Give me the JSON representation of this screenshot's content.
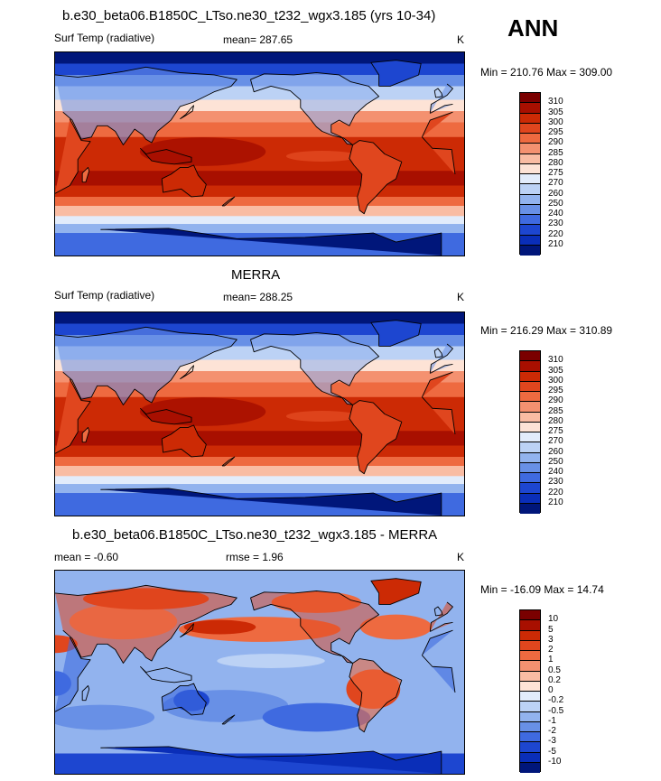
{
  "season": "ANN",
  "colors": {
    "ocean_warm": "#d94a1e",
    "land_outline": "#000000"
  },
  "panels": [
    {
      "title": "b.e30_beta06.B1850C_LTso.ne30_t232_wgx3.185 (yrs 10-34)",
      "variable": "Surf Temp (radiative)",
      "stat1": "mean= 287.65",
      "stat2": "",
      "units": "K",
      "minmax": "Min = 210.76 Max = 309.00",
      "levels": [
        "310",
        "305",
        "300",
        "295",
        "290",
        "285",
        "280",
        "275",
        "270",
        "260",
        "250",
        "240",
        "230",
        "220",
        "210"
      ],
      "colors": [
        "#7a0000",
        "#a80f00",
        "#cc2a05",
        "#e0461e",
        "#ee6a40",
        "#f49170",
        "#f9bca3",
        "#fde3d6",
        "#e2ecfb",
        "#bcd2f5",
        "#92b3ee",
        "#6890e6",
        "#3f6ae0",
        "#1d46d0",
        "#0a2eb8",
        "#00167a"
      ]
    },
    {
      "title": "MERRA",
      "variable": "Surf Temp (radiative)",
      "stat1": "mean= 288.25",
      "stat2": "",
      "units": "K",
      "minmax": "Min = 216.29 Max = 310.89",
      "levels": [
        "310",
        "305",
        "300",
        "295",
        "290",
        "285",
        "280",
        "275",
        "270",
        "260",
        "250",
        "240",
        "230",
        "220",
        "210"
      ],
      "colors": [
        "#7a0000",
        "#a80f00",
        "#cc2a05",
        "#e0461e",
        "#ee6a40",
        "#f49170",
        "#f9bca3",
        "#fde3d6",
        "#e2ecfb",
        "#bcd2f5",
        "#92b3ee",
        "#6890e6",
        "#3f6ae0",
        "#1d46d0",
        "#0a2eb8",
        "#00167a"
      ]
    },
    {
      "title": "b.e30_beta06.B1850C_LTso.ne30_t232_wgx3.185 - MERRA",
      "variable": "mean =  -0.60",
      "stat1": "",
      "stat2": "rmse =   1.96",
      "units": "K",
      "minmax": "Min = -16.09 Max =  14.74",
      "levels": [
        "10",
        "5",
        "3",
        "2",
        "1",
        "0.5",
        "0.2",
        "0",
        "-0.2",
        "-0.5",
        "-1",
        "-2",
        "-3",
        "-5",
        "-10"
      ],
      "colors": [
        "#7a0000",
        "#a80f00",
        "#cc2a05",
        "#e0461e",
        "#ee6a40",
        "#f49170",
        "#f9bca3",
        "#fde3d6",
        "#e2ecfb",
        "#bcd2f5",
        "#92b3ee",
        "#6890e6",
        "#3f6ae0",
        "#1d46d0",
        "#0a2eb8",
        "#00167a"
      ]
    }
  ]
}
